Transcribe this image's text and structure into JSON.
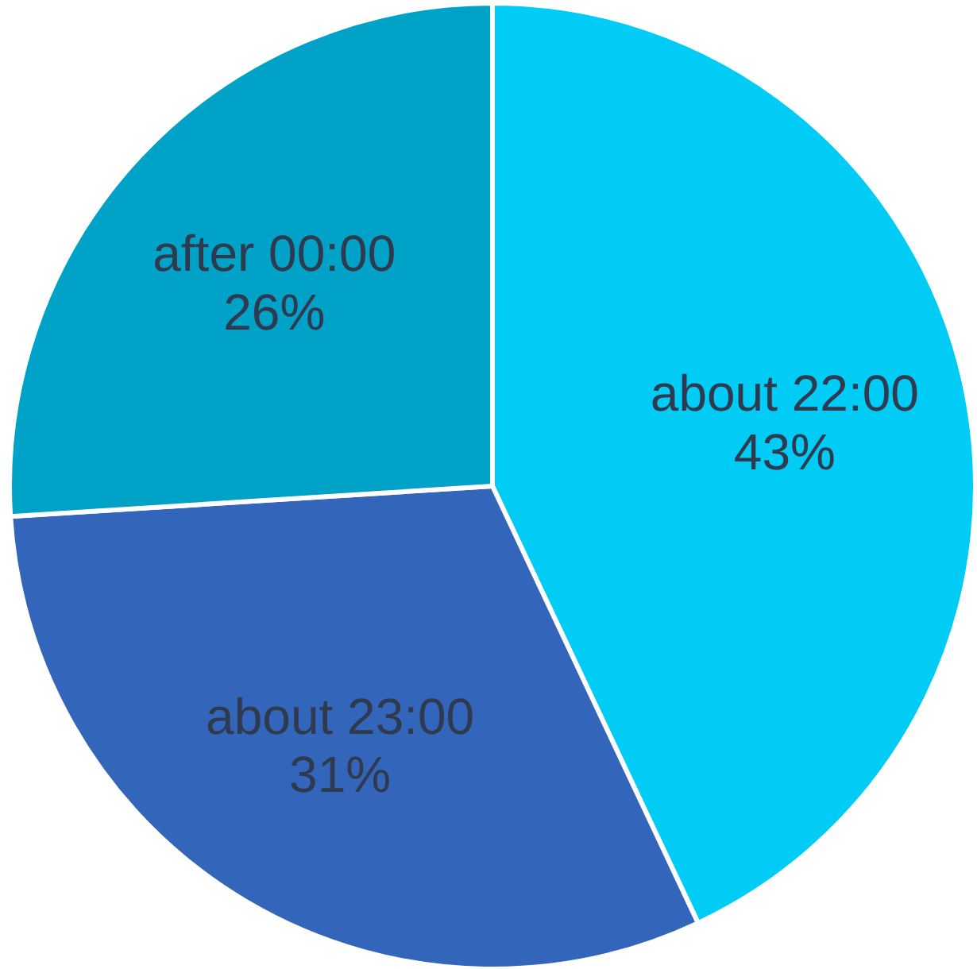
{
  "chart_data": {
    "type": "pie",
    "categories": [
      "about 22:00",
      "about 23:00",
      "after 00:00"
    ],
    "values": [
      43,
      31,
      26
    ],
    "colors": [
      "#00ccf5",
      "#3366bb",
      "#00a2c7"
    ],
    "value_labels": [
      "43%",
      "31%",
      "26%"
    ]
  }
}
